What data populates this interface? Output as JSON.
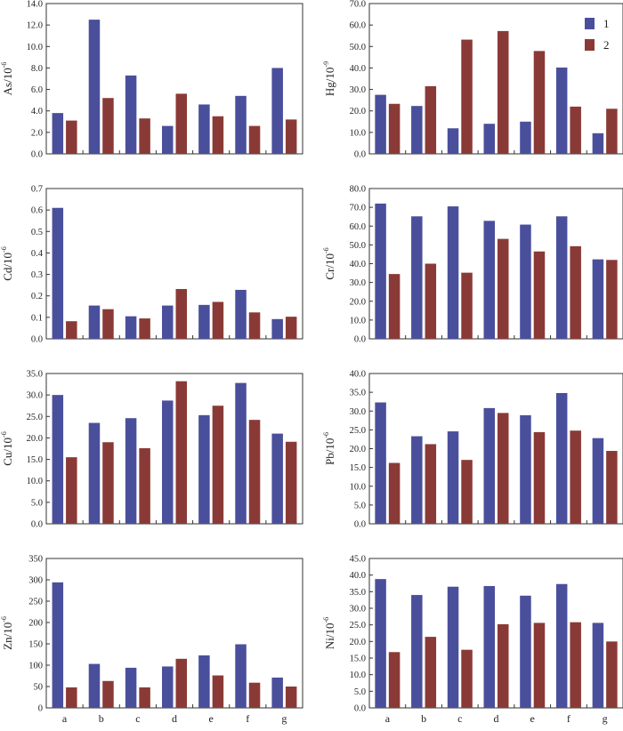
{
  "colors": {
    "series1": "#4a4f9c",
    "series2": "#8a3a36",
    "axis": "#333333"
  },
  "chart_data": [
    {
      "type": "bar",
      "title": "",
      "ylabel": "As/10",
      "ylabel_exp": "-6",
      "categories": [
        "a",
        "b",
        "c",
        "d",
        "e",
        "f",
        "g"
      ],
      "ylim": [
        0,
        14
      ],
      "yticks": [
        "0.0",
        "2.0",
        "4.0",
        "6.0",
        "8.0",
        "10.0",
        "12.0",
        "14.0"
      ],
      "series": [
        {
          "name": "1",
          "values": [
            3.8,
            12.5,
            7.3,
            2.6,
            4.6,
            5.4,
            8.0
          ]
        },
        {
          "name": "2",
          "values": [
            3.1,
            5.2,
            3.3,
            5.6,
            3.5,
            2.6,
            3.2
          ]
        }
      ]
    },
    {
      "type": "bar",
      "title": "",
      "ylabel": "Hg/10",
      "ylabel_exp": "-9",
      "categories": [
        "a",
        "b",
        "c",
        "d",
        "e",
        "f",
        "g"
      ],
      "ylim": [
        0,
        70
      ],
      "yticks": [
        "0.0",
        "10.0",
        "20.0",
        "30.0",
        "40.0",
        "50.0",
        "60.0",
        "70.0"
      ],
      "legend": [
        "1",
        "2"
      ],
      "series": [
        {
          "name": "1",
          "values": [
            27.5,
            22.3,
            11.9,
            14.0,
            15.0,
            40.2,
            9.6
          ]
        },
        {
          "name": "2",
          "values": [
            23.3,
            31.5,
            53.2,
            57.2,
            47.9,
            22.0,
            21.0
          ]
        }
      ]
    },
    {
      "type": "bar",
      "title": "",
      "ylabel": "Cd/10",
      "ylabel_exp": "-6",
      "categories": [
        "a",
        "b",
        "c",
        "d",
        "e",
        "f",
        "g"
      ],
      "ylim": [
        0,
        0.7
      ],
      "yticks": [
        "0.0",
        "0.1",
        "0.2",
        "0.3",
        "0.4",
        "0.5",
        "0.6",
        "0.7"
      ],
      "series": [
        {
          "name": "1",
          "values": [
            0.61,
            0.155,
            0.105,
            0.155,
            0.158,
            0.228,
            0.092
          ]
        },
        {
          "name": "2",
          "values": [
            0.082,
            0.138,
            0.095,
            0.232,
            0.172,
            0.123,
            0.103
          ]
        }
      ]
    },
    {
      "type": "bar",
      "title": "",
      "ylabel": "Cr/10",
      "ylabel_exp": "-6",
      "categories": [
        "a",
        "b",
        "c",
        "d",
        "e",
        "f",
        "g"
      ],
      "ylim": [
        0,
        80
      ],
      "yticks": [
        "0.0",
        "10.0",
        "20.0",
        "30.0",
        "40.0",
        "50.0",
        "60.0",
        "70.0",
        "80.0"
      ],
      "series": [
        {
          "name": "1",
          "values": [
            72.0,
            65.2,
            70.5,
            62.8,
            60.8,
            65.2,
            42.3
          ]
        },
        {
          "name": "2",
          "values": [
            34.5,
            40.0,
            35.2,
            53.2,
            46.5,
            49.3,
            42.0
          ]
        }
      ]
    },
    {
      "type": "bar",
      "title": "",
      "ylabel": "Cu/10",
      "ylabel_exp": "-6",
      "categories": [
        "a",
        "b",
        "c",
        "d",
        "e",
        "f",
        "g"
      ],
      "ylim": [
        0,
        35
      ],
      "yticks": [
        "0.0",
        "5.0",
        "10.0",
        "15.0",
        "20.0",
        "25.0",
        "30.0",
        "35.0"
      ],
      "series": [
        {
          "name": "1",
          "values": [
            30.0,
            23.5,
            24.6,
            28.7,
            25.3,
            32.8,
            21.0
          ]
        },
        {
          "name": "2",
          "values": [
            15.5,
            19.0,
            17.6,
            33.2,
            27.5,
            24.2,
            19.1
          ]
        }
      ]
    },
    {
      "type": "bar",
      "title": "",
      "ylabel": "Pb/10",
      "ylabel_exp": "-6",
      "categories": [
        "a",
        "b",
        "c",
        "d",
        "e",
        "f",
        "g"
      ],
      "ylim": [
        0,
        40
      ],
      "yticks": [
        "0.0",
        "5.0",
        "10.0",
        "15.0",
        "20.0",
        "25.0",
        "30.0",
        "35.0",
        "40.0"
      ],
      "series": [
        {
          "name": "1",
          "values": [
            32.3,
            23.3,
            24.6,
            30.8,
            28.9,
            34.8,
            22.8
          ]
        },
        {
          "name": "2",
          "values": [
            16.2,
            21.2,
            17.0,
            29.5,
            24.4,
            24.8,
            19.4
          ]
        }
      ]
    },
    {
      "type": "bar",
      "title": "",
      "ylabel": "Zn/10",
      "ylabel_exp": "-6",
      "categories": [
        "a",
        "b",
        "c",
        "d",
        "e",
        "f",
        "g"
      ],
      "ylim": [
        0,
        350
      ],
      "yticks": [
        "0",
        "50",
        "100",
        "150",
        "200",
        "250",
        "300",
        "350"
      ],
      "series": [
        {
          "name": "1",
          "values": [
            294,
            103,
            94,
            97,
            123,
            149,
            71
          ]
        },
        {
          "name": "2",
          "values": [
            48,
            63,
            48,
            115,
            76,
            59,
            50
          ]
        }
      ]
    },
    {
      "type": "bar",
      "title": "",
      "ylabel": "Ni/10",
      "ylabel_exp": "-6",
      "categories": [
        "a",
        "b",
        "c",
        "d",
        "e",
        "f",
        "g"
      ],
      "ylim": [
        0,
        45
      ],
      "yticks": [
        "0.0",
        "5.0",
        "10.0",
        "15.0",
        "20.0",
        "25.0",
        "30.0",
        "35.0",
        "40.0",
        "45.0"
      ],
      "series": [
        {
          "name": "1",
          "values": [
            38.8,
            34.0,
            36.5,
            36.7,
            33.8,
            37.3,
            25.6
          ]
        },
        {
          "name": "2",
          "values": [
            16.8,
            21.4,
            17.5,
            25.2,
            25.6,
            25.8,
            20.0
          ]
        }
      ]
    }
  ]
}
